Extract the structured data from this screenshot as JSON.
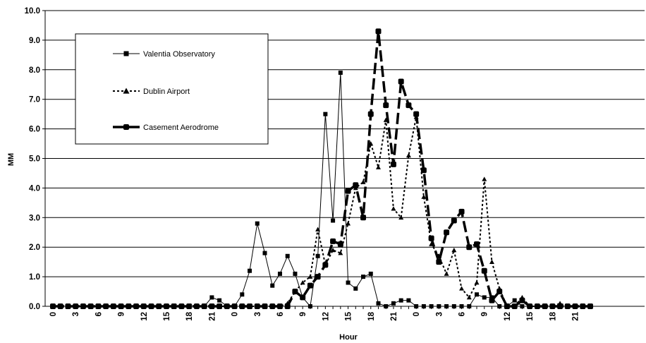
{
  "chart_data": {
    "type": "line",
    "title": "",
    "xlabel": "Hour",
    "ylabel": "MM",
    "ylim": [
      0,
      10
    ],
    "yticks": [
      "0.0",
      "1.0",
      "2.0",
      "3.0",
      "4.0",
      "5.0",
      "6.0",
      "7.0",
      "8.0",
      "9.0",
      "10.0"
    ],
    "xtick_labels": [
      "0",
      "3",
      "6",
      "9",
      "12",
      "15",
      "18",
      "21",
      "0",
      "3",
      "6",
      "9",
      "12",
      "15",
      "18",
      "21",
      "0",
      "3",
      "6",
      "9",
      "12",
      "15",
      "18",
      "21"
    ],
    "grid": "horizontal",
    "legend_position": "top-left",
    "x": [
      0,
      1,
      2,
      3,
      4,
      5,
      6,
      7,
      8,
      9,
      10,
      11,
      12,
      13,
      14,
      15,
      16,
      17,
      18,
      19,
      20,
      21,
      22,
      23,
      24,
      25,
      26,
      27,
      28,
      29,
      30,
      31,
      32,
      33,
      34,
      35,
      36,
      37,
      38,
      39,
      40,
      41,
      42,
      43,
      44,
      45,
      46,
      47,
      48,
      49,
      50,
      51,
      52,
      53,
      54,
      55,
      56,
      57,
      58,
      59,
      60,
      61,
      62,
      63,
      64,
      65,
      66,
      67,
      68,
      69,
      70,
      71
    ],
    "series": [
      {
        "name": "Valentia Observatory",
        "style": "solid-thin-square",
        "values": [
          0,
          0,
          0,
          0,
          0,
          0,
          0,
          0,
          0,
          0,
          0,
          0,
          0,
          0,
          0,
          0,
          0,
          0,
          0,
          0,
          0,
          0.3,
          0.2,
          0,
          0,
          0.4,
          1.2,
          2.8,
          1.8,
          0.7,
          1.1,
          1.7,
          1.1,
          0.3,
          0,
          1.7,
          6.5,
          2.9,
          7.9,
          0.8,
          0.6,
          1.0,
          1.1,
          0.1,
          0,
          0.1,
          0.2,
          0.2,
          0,
          0,
          0,
          0,
          0,
          0,
          0,
          0,
          0.4,
          0.3,
          0.3,
          0,
          0,
          0.2,
          0,
          0,
          0,
          0,
          0,
          0,
          0,
          0,
          0,
          0
        ]
      },
      {
        "name": "Dublin Airport",
        "style": "dotted-triangle",
        "values": [
          0,
          0,
          0,
          0,
          0,
          0,
          0,
          0,
          0,
          0,
          0,
          0,
          0,
          0,
          0,
          0,
          0,
          0,
          0,
          0,
          0,
          0,
          0,
          0,
          0,
          0,
          0,
          0,
          0,
          0,
          0,
          0.1,
          0.5,
          0.8,
          1.0,
          2.6,
          1.4,
          1.9,
          1.8,
          2.8,
          4.0,
          4.2,
          5.5,
          4.7,
          6.3,
          3.3,
          3.0,
          5.1,
          6.4,
          3.7,
          2.1,
          1.7,
          1.1,
          1.9,
          0.6,
          0.3,
          0.8,
          4.3,
          1.5,
          0.6,
          0,
          0,
          0.3,
          0,
          0,
          0,
          0,
          0.1,
          0,
          0,
          0,
          0
        ]
      },
      {
        "name": "Casement Aerodrome",
        "style": "dashed-thick-circle",
        "values": [
          0,
          0,
          0,
          0,
          0,
          0,
          0,
          0,
          0,
          0,
          0,
          0,
          0,
          0,
          0,
          0,
          0,
          0,
          0,
          0,
          0,
          0,
          0,
          0,
          0,
          0,
          0,
          0,
          0,
          0,
          0,
          0,
          0.5,
          0.3,
          0.7,
          1.0,
          1.4,
          2.2,
          2.1,
          3.9,
          4.1,
          3.0,
          6.5,
          9.3,
          6.8,
          4.8,
          7.6,
          6.8,
          6.5,
          4.6,
          2.3,
          1.5,
          2.5,
          2.9,
          3.2,
          2.0,
          2.1,
          1.2,
          0.2,
          0.5,
          0,
          0,
          0.2,
          0,
          0,
          0,
          0,
          0,
          0,
          0,
          0,
          0
        ]
      }
    ]
  }
}
